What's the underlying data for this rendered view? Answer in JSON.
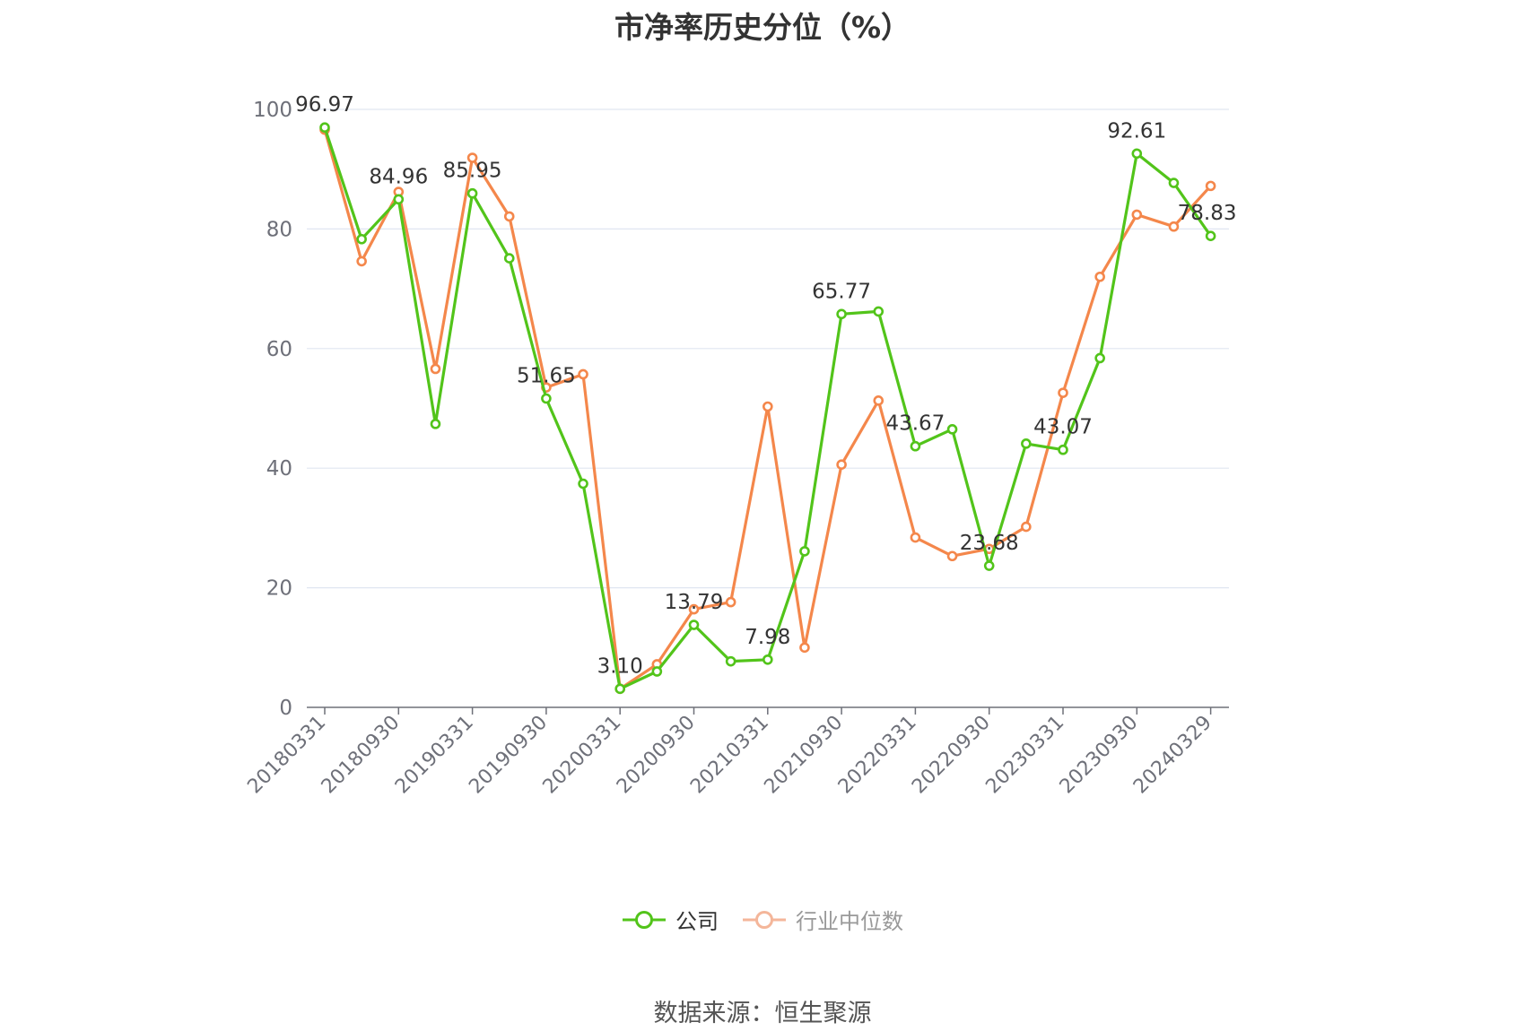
{
  "chart_data": {
    "type": "line",
    "title": "市净率历史分位（%）",
    "source": "数据来源：恒生聚源",
    "x_tick_labels": [
      "20180331",
      "20180930",
      "20190331",
      "20190930",
      "20200331",
      "20200930",
      "20210331",
      "20210930",
      "20220331",
      "20220930",
      "20230331",
      "20230930",
      "20240329"
    ],
    "x": [
      "20180331",
      "20180630",
      "20180930",
      "20181231",
      "20190331",
      "20190630",
      "20190930",
      "20191231",
      "20200331",
      "20200630",
      "20200930",
      "20201231",
      "20210331",
      "20210630",
      "20210930",
      "20211231",
      "20220331",
      "20220630",
      "20220930",
      "20221231",
      "20230331",
      "20230630",
      "20230930",
      "20231231",
      "20240329"
    ],
    "ylim": [
      0,
      100
    ],
    "y_ticks": [
      0,
      20,
      40,
      60,
      80,
      100
    ],
    "grid": true,
    "legend_position": "bottom",
    "series": [
      {
        "name": "公司",
        "color": "#52c41a",
        "values": [
          96.97,
          78.3,
          84.96,
          47.4,
          85.95,
          75.1,
          51.65,
          37.4,
          3.1,
          6.0,
          13.79,
          7.7,
          7.98,
          26.1,
          65.77,
          66.2,
          43.67,
          46.5,
          23.68,
          44.1,
          43.07,
          58.4,
          92.61,
          87.7,
          78.83
        ],
        "labels": {
          "0": "96.97",
          "2": "84.96",
          "4": "85.95",
          "6": "51.65",
          "8": "3.10",
          "10": "13.79",
          "12": "7.98",
          "14": "65.77",
          "16": "43.67",
          "18": "23.68",
          "20": "43.07",
          "22": "92.61",
          "24": "78.83"
        }
      },
      {
        "name": "行业中位数",
        "color": "#f4874b",
        "values": [
          96.6,
          74.6,
          86.2,
          56.6,
          91.9,
          82.1,
          53.5,
          55.7,
          3.1,
          7.2,
          16.4,
          17.6,
          50.3,
          10.0,
          40.6,
          51.3,
          28.4,
          25.3,
          26.5,
          30.2,
          52.6,
          72.0,
          82.4,
          80.4,
          87.2
        ],
        "labels": {}
      }
    ]
  }
}
